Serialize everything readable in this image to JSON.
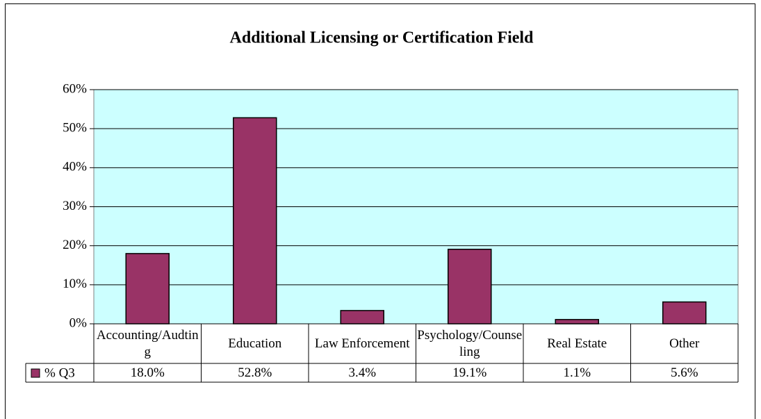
{
  "chart_data": {
    "type": "bar",
    "title": "Additional Licensing or Certification Field",
    "categories": [
      "Accounting/Audting",
      "Education",
      "Law Enforcement",
      "Psychology/Counseling",
      "Real Estate",
      "Other"
    ],
    "series": [
      {
        "name": "% Q3",
        "color": "#993366",
        "values": [
          18.0,
          52.8,
          3.4,
          19.1,
          1.1,
          5.6
        ],
        "value_labels": [
          "18.0%",
          "52.8%",
          "3.4%",
          "19.1%",
          "1.1%",
          "5.6%"
        ]
      }
    ],
    "ylim": [
      0,
      60
    ],
    "yticks": [
      {
        "value": 0,
        "label": "0%"
      },
      {
        "value": 10,
        "label": "10%"
      },
      {
        "value": 20,
        "label": "20%"
      },
      {
        "value": 30,
        "label": "30%"
      },
      {
        "value": 40,
        "label": "40%"
      },
      {
        "value": 50,
        "label": "50%"
      },
      {
        "value": 60,
        "label": "60%"
      }
    ],
    "grid": true,
    "plot_background": "#ccffff"
  }
}
